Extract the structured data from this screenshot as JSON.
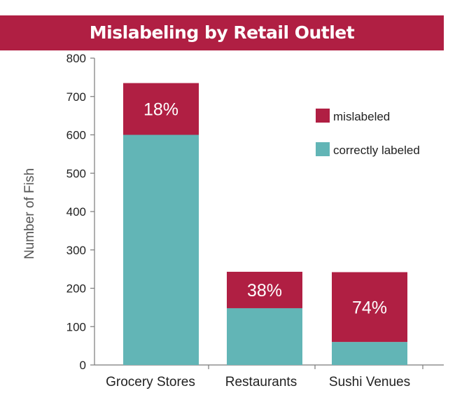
{
  "chart_data": {
    "type": "bar",
    "stacked": true,
    "title": "Mislabeling by Retail Outlet",
    "ylabel": "Number of Fish",
    "xlabel": "",
    "ylim": [
      0,
      800
    ],
    "yticks": [
      0,
      100,
      200,
      300,
      400,
      500,
      600,
      700,
      800
    ],
    "categories": [
      "Grocery Stores",
      "Restaurants",
      "Sushi Venues"
    ],
    "series": [
      {
        "name": "correctly labeled",
        "color": "#62b5b6",
        "values": [
          600,
          148,
          60
        ]
      },
      {
        "name": "mislabeled",
        "color": "#b01f43",
        "values": [
          135,
          95,
          182
        ]
      }
    ],
    "data_labels": [
      "18%",
      "38%",
      "74%"
    ],
    "legend": {
      "placement": "top-right",
      "order": [
        "mislabeled",
        "correctly labeled"
      ]
    },
    "grid": false
  }
}
